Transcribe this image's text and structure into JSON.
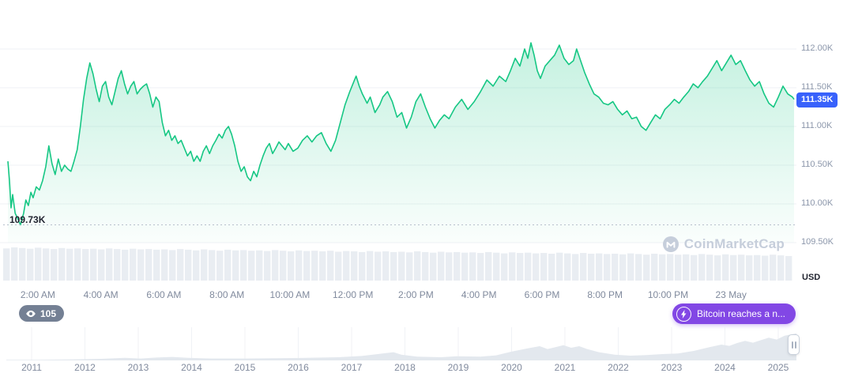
{
  "app": {
    "watermark": "CoinMarketCap"
  },
  "colors": {
    "line_green": "#16C784",
    "price_badge_bg": "#3861FB",
    "news_badge_bg": "#8247E5",
    "watch_badge_bg": "#616E85",
    "text_gray": "#808A9D",
    "text_dark": "#222531",
    "volume_gray": "#E9EDF2",
    "minimap_fill": "#E3E8EE"
  },
  "price_badge": {
    "label": "111.35K"
  },
  "low_label": "109.73K",
  "watch_badge": {
    "count": "105"
  },
  "news_badge": {
    "label": "Bitcoin reaches a n..."
  },
  "y_axis": {
    "unit_label": "USD",
    "labels": [
      "112.00K",
      "111.50K",
      "111.00K",
      "110.50K",
      "110.00K",
      "109.50K"
    ]
  },
  "x_axis": {
    "labels": [
      "2:00 AM",
      "4:00 AM",
      "6:00 AM",
      "8:00 AM",
      "10:00 AM",
      "12:00 PM",
      "2:00 PM",
      "4:00 PM",
      "6:00 PM",
      "8:00 PM",
      "10:00 PM",
      "23 May"
    ]
  },
  "minimap": {
    "years": [
      "2011",
      "2012",
      "2013",
      "2014",
      "2015",
      "2016",
      "2017",
      "2018",
      "2019",
      "2020",
      "2021",
      "2022",
      "2023",
      "2024",
      "2025"
    ]
  },
  "chart_data": {
    "type": "area",
    "title": "Bitcoin price chart (intraday, 22-23 May)",
    "ylabel": "USD",
    "current_price": "111.35K",
    "low": "109.73K",
    "low_line_value": 109.73,
    "x_range": [
      1.0,
      26.0
    ],
    "x_ticks_hours": [
      2,
      4,
      6,
      8,
      10,
      12,
      14,
      16,
      18,
      20,
      22,
      24
    ],
    "y_gridlines": [
      {
        "label": "112.00K",
        "value": 112.0
      },
      {
        "label": "111.50K",
        "value": 111.5
      },
      {
        "label": "111.00K",
        "value": 111.0
      },
      {
        "label": "110.50K",
        "value": 110.5
      },
      {
        "label": "110.00K",
        "value": 110.0
      },
      {
        "label": "109.50K",
        "value": 109.5
      }
    ],
    "points": [
      [
        1.05,
        110.55
      ],
      [
        1.1,
        110.3
      ],
      [
        1.15,
        109.95
      ],
      [
        1.2,
        110.12
      ],
      [
        1.28,
        109.88
      ],
      [
        1.35,
        109.82
      ],
      [
        1.45,
        109.73
      ],
      [
        1.55,
        109.88
      ],
      [
        1.62,
        110.05
      ],
      [
        1.7,
        109.98
      ],
      [
        1.78,
        110.15
      ],
      [
        1.85,
        110.08
      ],
      [
        1.95,
        110.22
      ],
      [
        2.05,
        110.18
      ],
      [
        2.15,
        110.3
      ],
      [
        2.25,
        110.48
      ],
      [
        2.35,
        110.75
      ],
      [
        2.45,
        110.52
      ],
      [
        2.55,
        110.38
      ],
      [
        2.65,
        110.58
      ],
      [
        2.75,
        110.42
      ],
      [
        2.85,
        110.5
      ],
      [
        2.95,
        110.45
      ],
      [
        3.05,
        110.42
      ],
      [
        3.15,
        110.55
      ],
      [
        3.25,
        110.7
      ],
      [
        3.35,
        111.0
      ],
      [
        3.45,
        111.35
      ],
      [
        3.55,
        111.62
      ],
      [
        3.65,
        111.82
      ],
      [
        3.75,
        111.68
      ],
      [
        3.85,
        111.48
      ],
      [
        3.95,
        111.32
      ],
      [
        4.05,
        111.52
      ],
      [
        4.15,
        111.58
      ],
      [
        4.25,
        111.38
      ],
      [
        4.35,
        111.28
      ],
      [
        4.45,
        111.45
      ],
      [
        4.55,
        111.62
      ],
      [
        4.65,
        111.72
      ],
      [
        4.75,
        111.55
      ],
      [
        4.85,
        111.42
      ],
      [
        4.95,
        111.52
      ],
      [
        5.05,
        111.58
      ],
      [
        5.15,
        111.42
      ],
      [
        5.25,
        111.48
      ],
      [
        5.35,
        111.52
      ],
      [
        5.45,
        111.55
      ],
      [
        5.55,
        111.42
      ],
      [
        5.65,
        111.25
      ],
      [
        5.75,
        111.38
      ],
      [
        5.85,
        111.32
      ],
      [
        5.95,
        111.05
      ],
      [
        6.05,
        110.88
      ],
      [
        6.15,
        110.95
      ],
      [
        6.25,
        110.82
      ],
      [
        6.35,
        110.88
      ],
      [
        6.45,
        110.78
      ],
      [
        6.55,
        110.82
      ],
      [
        6.65,
        110.72
      ],
      [
        6.75,
        110.62
      ],
      [
        6.85,
        110.68
      ],
      [
        6.95,
        110.55
      ],
      [
        7.05,
        110.62
      ],
      [
        7.15,
        110.55
      ],
      [
        7.25,
        110.68
      ],
      [
        7.35,
        110.75
      ],
      [
        7.45,
        110.65
      ],
      [
        7.55,
        110.75
      ],
      [
        7.65,
        110.82
      ],
      [
        7.75,
        110.9
      ],
      [
        7.85,
        110.85
      ],
      [
        7.95,
        110.95
      ],
      [
        8.05,
        111.0
      ],
      [
        8.15,
        110.9
      ],
      [
        8.25,
        110.75
      ],
      [
        8.35,
        110.55
      ],
      [
        8.45,
        110.42
      ],
      [
        8.55,
        110.48
      ],
      [
        8.65,
        110.35
      ],
      [
        8.75,
        110.3
      ],
      [
        8.85,
        110.42
      ],
      [
        8.95,
        110.35
      ],
      [
        9.05,
        110.5
      ],
      [
        9.15,
        110.62
      ],
      [
        9.25,
        110.72
      ],
      [
        9.35,
        110.78
      ],
      [
        9.45,
        110.65
      ],
      [
        9.55,
        110.72
      ],
      [
        9.65,
        110.8
      ],
      [
        9.75,
        110.75
      ],
      [
        9.85,
        110.7
      ],
      [
        9.95,
        110.78
      ],
      [
        10.1,
        110.68
      ],
      [
        10.25,
        110.72
      ],
      [
        10.4,
        110.82
      ],
      [
        10.55,
        110.88
      ],
      [
        10.7,
        110.8
      ],
      [
        10.85,
        110.88
      ],
      [
        11.0,
        110.92
      ],
      [
        11.15,
        110.78
      ],
      [
        11.3,
        110.68
      ],
      [
        11.45,
        110.82
      ],
      [
        11.6,
        111.05
      ],
      [
        11.75,
        111.28
      ],
      [
        11.9,
        111.45
      ],
      [
        12.0,
        111.55
      ],
      [
        12.1,
        111.65
      ],
      [
        12.2,
        111.52
      ],
      [
        12.3,
        111.42
      ],
      [
        12.45,
        111.3
      ],
      [
        12.55,
        111.38
      ],
      [
        12.7,
        111.18
      ],
      [
        12.85,
        111.28
      ],
      [
        12.95,
        111.38
      ],
      [
        13.1,
        111.45
      ],
      [
        13.25,
        111.32
      ],
      [
        13.4,
        111.12
      ],
      [
        13.55,
        111.18
      ],
      [
        13.7,
        110.98
      ],
      [
        13.85,
        111.12
      ],
      [
        14.0,
        111.32
      ],
      [
        14.15,
        111.42
      ],
      [
        14.3,
        111.25
      ],
      [
        14.45,
        111.1
      ],
      [
        14.6,
        110.98
      ],
      [
        14.75,
        111.08
      ],
      [
        14.9,
        111.15
      ],
      [
        15.05,
        111.1
      ],
      [
        15.25,
        111.25
      ],
      [
        15.45,
        111.35
      ],
      [
        15.65,
        111.22
      ],
      [
        15.85,
        111.32
      ],
      [
        16.05,
        111.45
      ],
      [
        16.25,
        111.6
      ],
      [
        16.45,
        111.52
      ],
      [
        16.65,
        111.65
      ],
      [
        16.85,
        111.58
      ],
      [
        17.0,
        111.72
      ],
      [
        17.15,
        111.88
      ],
      [
        17.3,
        111.78
      ],
      [
        17.45,
        112.0
      ],
      [
        17.55,
        111.88
      ],
      [
        17.65,
        112.08
      ],
      [
        17.75,
        111.92
      ],
      [
        17.85,
        111.72
      ],
      [
        17.95,
        111.62
      ],
      [
        18.1,
        111.78
      ],
      [
        18.25,
        111.85
      ],
      [
        18.4,
        111.92
      ],
      [
        18.55,
        112.05
      ],
      [
        18.7,
        111.88
      ],
      [
        18.85,
        111.8
      ],
      [
        19.0,
        111.85
      ],
      [
        19.1,
        112.0
      ],
      [
        19.2,
        111.88
      ],
      [
        19.35,
        111.7
      ],
      [
        19.5,
        111.55
      ],
      [
        19.65,
        111.42
      ],
      [
        19.8,
        111.38
      ],
      [
        19.95,
        111.3
      ],
      [
        20.1,
        111.28
      ],
      [
        20.25,
        111.32
      ],
      [
        20.4,
        111.22
      ],
      [
        20.55,
        111.15
      ],
      [
        20.7,
        111.2
      ],
      [
        20.85,
        111.1
      ],
      [
        21.0,
        111.12
      ],
      [
        21.15,
        111.0
      ],
      [
        21.3,
        110.95
      ],
      [
        21.45,
        111.05
      ],
      [
        21.6,
        111.15
      ],
      [
        21.75,
        111.1
      ],
      [
        21.9,
        111.22
      ],
      [
        22.05,
        111.28
      ],
      [
        22.2,
        111.35
      ],
      [
        22.35,
        111.3
      ],
      [
        22.5,
        111.38
      ],
      [
        22.65,
        111.45
      ],
      [
        22.8,
        111.55
      ],
      [
        22.95,
        111.5
      ],
      [
        23.1,
        111.58
      ],
      [
        23.25,
        111.65
      ],
      [
        23.4,
        111.75
      ],
      [
        23.55,
        111.85
      ],
      [
        23.7,
        111.72
      ],
      [
        23.85,
        111.82
      ],
      [
        24.0,
        111.92
      ],
      [
        24.15,
        111.8
      ],
      [
        24.3,
        111.85
      ],
      [
        24.45,
        111.72
      ],
      [
        24.6,
        111.6
      ],
      [
        24.75,
        111.52
      ],
      [
        24.9,
        111.58
      ],
      [
        25.05,
        111.42
      ],
      [
        25.2,
        111.3
      ],
      [
        25.35,
        111.25
      ],
      [
        25.5,
        111.38
      ],
      [
        25.65,
        111.52
      ],
      [
        25.8,
        111.42
      ],
      [
        25.95,
        111.38
      ],
      [
        26.0,
        111.35
      ]
    ],
    "volume_rel": [
      0.97,
      1,
      0.98,
      0.96,
      0.99,
      0.97,
      0.95,
      0.98,
      0.96,
      0.97,
      0.95,
      0.96,
      0.94,
      0.97,
      0.95,
      0.93,
      0.96,
      0.94,
      0.95,
      0.93,
      0.94,
      0.92,
      0.95,
      0.93,
      0.91,
      0.94,
      0.92,
      0.9,
      0.93,
      0.91,
      0.92,
      0.9,
      0.91,
      0.89,
      0.92,
      0.9,
      0.88,
      0.91,
      0.89,
      0.9,
      0.88,
      0.9,
      0.87,
      0.89,
      0.88,
      0.86,
      0.89,
      0.87,
      0.88,
      0.86,
      0.87,
      0.85,
      0.88,
      0.86,
      0.84,
      0.87,
      0.85,
      0.86,
      0.84,
      0.85,
      0.83,
      0.86,
      0.84,
      0.82,
      0.85,
      0.83,
      0.84,
      0.82,
      0.83,
      0.81,
      0.84,
      0.82,
      0.8,
      0.83,
      0.81,
      0.82,
      0.8,
      0.81,
      0.79,
      0.82,
      0.8,
      0.78,
      0.81,
      0.79,
      0.8,
      0.78,
      0.79,
      0.77,
      0.8,
      0.78,
      0.76,
      0.79,
      0.77,
      0.78,
      0.76,
      0.77,
      0.75,
      0.78,
      0.76,
      0.74
    ],
    "minimap": {
      "type": "area",
      "x_range_years": [
        2010.5,
        2025.4
      ],
      "points": [
        [
          0,
          0.02
        ],
        [
          0.04,
          0.02
        ],
        [
          0.08,
          0.03
        ],
        [
          0.12,
          0.05
        ],
        [
          0.15,
          0.08
        ],
        [
          0.17,
          0.06
        ],
        [
          0.19,
          0.09
        ],
        [
          0.21,
          0.11
        ],
        [
          0.23,
          0.08
        ],
        [
          0.26,
          0.06
        ],
        [
          0.3,
          0.06
        ],
        [
          0.34,
          0.07
        ],
        [
          0.38,
          0.08
        ],
        [
          0.42,
          0.1
        ],
        [
          0.45,
          0.14
        ],
        [
          0.47,
          0.2
        ],
        [
          0.49,
          0.26
        ],
        [
          0.5,
          0.18
        ],
        [
          0.52,
          0.12
        ],
        [
          0.55,
          0.1
        ],
        [
          0.57,
          0.13
        ],
        [
          0.6,
          0.12
        ],
        [
          0.62,
          0.16
        ],
        [
          0.64,
          0.28
        ],
        [
          0.66,
          0.38
        ],
        [
          0.675,
          0.45
        ],
        [
          0.685,
          0.36
        ],
        [
          0.695,
          0.42
        ],
        [
          0.705,
          0.48
        ],
        [
          0.715,
          0.4
        ],
        [
          0.725,
          0.45
        ],
        [
          0.735,
          0.36
        ],
        [
          0.75,
          0.26
        ],
        [
          0.77,
          0.18
        ],
        [
          0.79,
          0.15
        ],
        [
          0.81,
          0.17
        ],
        [
          0.83,
          0.2
        ],
        [
          0.85,
          0.22
        ],
        [
          0.87,
          0.3
        ],
        [
          0.89,
          0.42
        ],
        [
          0.905,
          0.5
        ],
        [
          0.915,
          0.46
        ],
        [
          0.925,
          0.55
        ],
        [
          0.935,
          0.62
        ],
        [
          0.945,
          0.56
        ],
        [
          0.955,
          0.64
        ],
        [
          0.965,
          0.72
        ],
        [
          0.975,
          0.66
        ],
        [
          0.985,
          0.78
        ],
        [
          1,
          0.85
        ]
      ]
    }
  }
}
